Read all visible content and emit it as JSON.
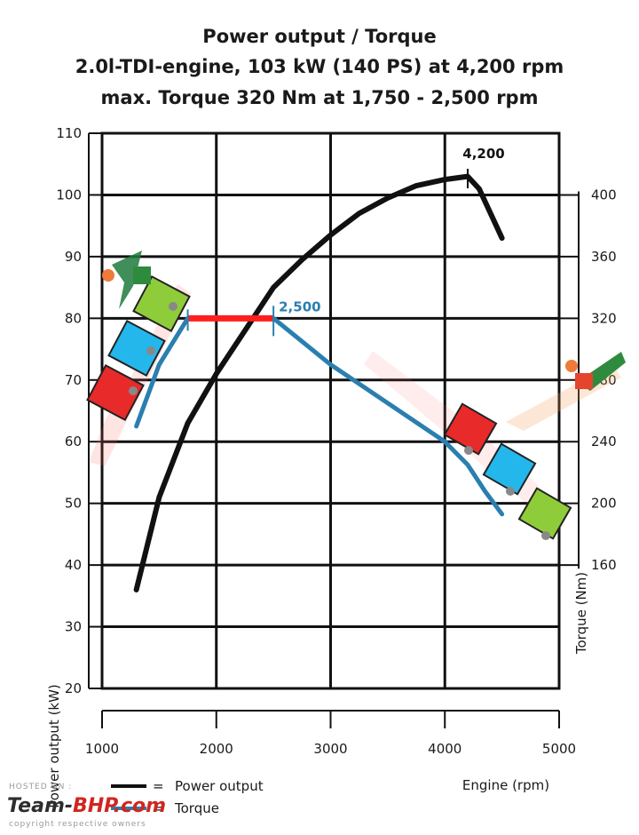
{
  "chart_data": {
    "type": "line",
    "title": [
      "Power output / Torque",
      "2.0l-TDI-engine, 103 kW (140 PS) at 4,200 rpm",
      "max. Torque 320 Nm at 1,750 - 2,500 rpm"
    ],
    "xlabel": "Engine (rpm)",
    "ylabel": "Power output (kW)",
    "y2label": "Torque (Nm)",
    "xlim": [
      1000,
      5000
    ],
    "xticks": [
      1000,
      2000,
      3000,
      4000,
      5000
    ],
    "ylim": [
      20,
      110
    ],
    "yticks": [
      20,
      30,
      40,
      50,
      60,
      70,
      80,
      90,
      100,
      110
    ],
    "y2lim": [
      160,
      400
    ],
    "y2ticks": [
      160,
      200,
      240,
      280,
      320,
      360,
      400
    ],
    "grid": true,
    "series": [
      {
        "name": "Power output",
        "axis": "left",
        "color": "#111111",
        "x": [
          1300,
          1500,
          1750,
          2000,
          2250,
          2500,
          2750,
          3000,
          3250,
          3500,
          3750,
          4000,
          4200,
          4300,
          4400,
          4500
        ],
        "y": [
          36,
          51,
          63,
          71,
          78,
          85,
          89.5,
          93.5,
          97,
          99.5,
          101.5,
          102.5,
          103,
          101,
          97,
          93
        ]
      },
      {
        "name": "Torque",
        "axis": "right",
        "color": "#2a7fb0",
        "x": [
          1300,
          1500,
          1750,
          2000,
          2250,
          2500,
          3000,
          3500,
          4000,
          4200,
          4350,
          4500
        ],
        "y": [
          250,
          290,
          320,
          320,
          320,
          320,
          290,
          265,
          240,
          225,
          208,
          193
        ]
      }
    ],
    "highlight": {
      "color": "#ff1e1e",
      "x": [
        1750,
        2500
      ],
      "y": 320,
      "axis": "right"
    },
    "annotations": [
      {
        "text": "4,200",
        "x": 4200,
        "color": "#111111"
      },
      {
        "text": "2,500",
        "x": 2500,
        "color": "#2a7fb0"
      }
    ],
    "legend": [
      {
        "label": "Power output",
        "color": "#111111"
      },
      {
        "label": "Torque",
        "color": "#2a7fb0"
      }
    ],
    "legend_position": "bottom-left"
  },
  "watermark": {
    "line1": "HOSTED ON :",
    "brand1": "Team-",
    "brand2": "BHP.com",
    "line3": "copyright respective owners"
  },
  "colors": {
    "grid": "#111111",
    "power": "#111111",
    "torque": "#2a7fb0",
    "plateau": "#ff1e1e"
  }
}
